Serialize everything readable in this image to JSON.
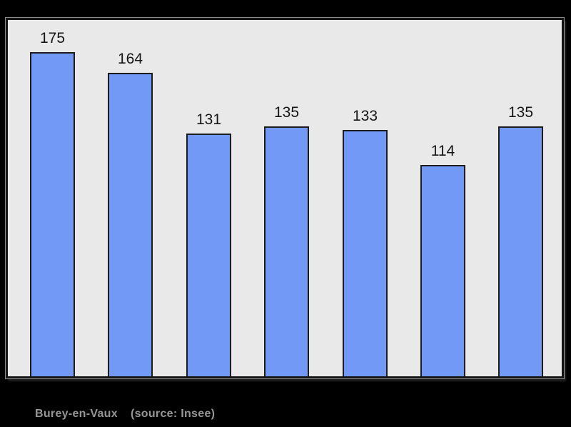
{
  "page": {
    "background": "#000000"
  },
  "chart_data": {
    "type": "bar",
    "values": [
      175,
      164,
      131,
      135,
      133,
      114,
      135
    ],
    "bar_labels": [
      "175",
      "164",
      "131",
      "135",
      "133",
      "114",
      "135"
    ],
    "title": "",
    "xlabel": "",
    "ylabel": "",
    "ylim": [
      0,
      193
    ],
    "grid": false,
    "legend": false,
    "x_tick_labels_visible": false,
    "bar_color": "#7399F7",
    "bar_border_color": "#1c1c1c",
    "panel_background": "#E9E9E9",
    "panel_border_color": "#141414"
  },
  "caption": {
    "commune": "Burey-en-Vaux",
    "source": "(source: Insee)",
    "text_color": "#969696"
  }
}
